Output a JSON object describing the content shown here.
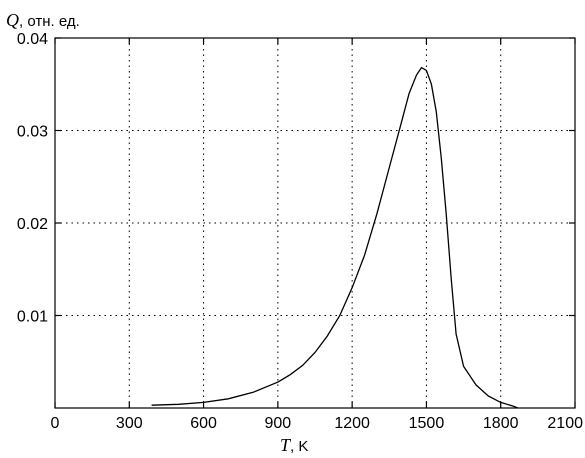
{
  "chart_data": {
    "type": "line",
    "xlabel": {
      "var": "T",
      "unit": ", K"
    },
    "ylabel": {
      "var": "Q",
      "unit": ", отн. ед."
    },
    "xlim": [
      0,
      2100
    ],
    "ylim": [
      0,
      0.04
    ],
    "grid": true,
    "x_ticks": [
      {
        "value": 0,
        "label": "0"
      },
      {
        "value": 300,
        "label": "300"
      },
      {
        "value": 600,
        "label": "600"
      },
      {
        "value": 900,
        "label": "900"
      },
      {
        "value": 1200,
        "label": "1200"
      },
      {
        "value": 1500,
        "label": "1500"
      },
      {
        "value": 1800,
        "label": "1800"
      },
      {
        "value": 2100,
        "label": "2100"
      }
    ],
    "y_ticks": [
      {
        "value": 0.01,
        "label": "0.01"
      },
      {
        "value": 0.02,
        "label": "0.02"
      },
      {
        "value": 0.03,
        "label": "0.03"
      },
      {
        "value": 0.04,
        "label": "0.04"
      }
    ],
    "series": [
      {
        "x": [
          390,
          500,
          600,
          700,
          800,
          900,
          950,
          1000,
          1050,
          1100,
          1150,
          1200,
          1250,
          1300,
          1350,
          1400,
          1430,
          1460,
          1480,
          1500,
          1520,
          1540,
          1560,
          1580,
          1600,
          1620,
          1650,
          1700,
          1750,
          1800,
          1850,
          1870
        ],
        "y": [
          0.0003,
          0.0004,
          0.0006,
          0.001,
          0.0017,
          0.0028,
          0.0036,
          0.0046,
          0.006,
          0.0078,
          0.01,
          0.013,
          0.0165,
          0.021,
          0.026,
          0.031,
          0.034,
          0.036,
          0.0368,
          0.0365,
          0.035,
          0.032,
          0.027,
          0.021,
          0.014,
          0.008,
          0.0045,
          0.0025,
          0.0013,
          0.0006,
          0.0002,
          0.0
        ]
      }
    ]
  }
}
